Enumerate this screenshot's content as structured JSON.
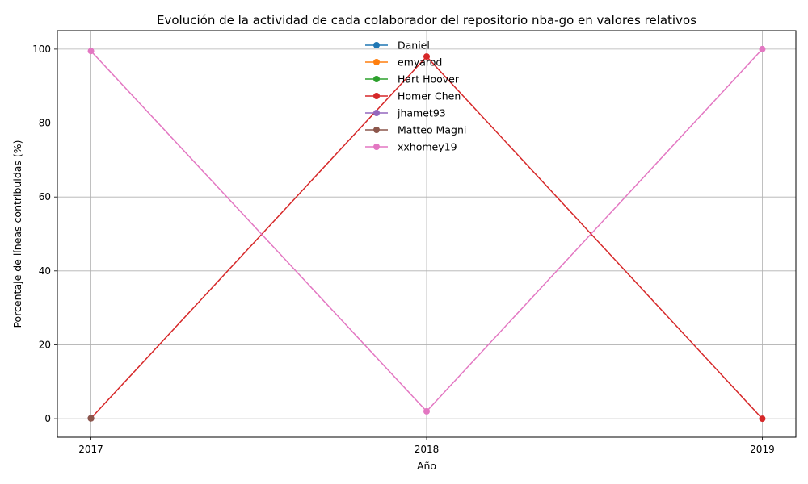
{
  "chart_data": {
    "type": "line",
    "title": "Evolución de la actividad de cada colaborador del repositorio nba-go en valores relativos",
    "xlabel": "Año",
    "ylabel": "Porcentaje de líneas contribuidas (%)",
    "x": [
      2017,
      2018,
      2019
    ],
    "x_tick_labels": [
      "2017",
      "2018",
      "2019"
    ],
    "xlim": [
      2016.9,
      2019.1
    ],
    "ylim": [
      -5,
      105
    ],
    "y_ticks": [
      0,
      20,
      40,
      60,
      80,
      100
    ],
    "y_tick_labels": [
      "0",
      "20",
      "40",
      "60",
      "80",
      "100"
    ],
    "grid": true,
    "legend_position": "upper-center",
    "series": [
      {
        "name": "Daniel",
        "color": "#1f77b4",
        "values": [
          0.1,
          null,
          null
        ]
      },
      {
        "name": "emyarod",
        "color": "#ff7f0e",
        "values": [
          0.1,
          null,
          null
        ]
      },
      {
        "name": "Hart Hoover",
        "color": "#2ca02c",
        "values": [
          0.1,
          null,
          null
        ]
      },
      {
        "name": "Homer Chen",
        "color": "#d62728",
        "values": [
          0.1,
          98,
          0
        ]
      },
      {
        "name": "jhamet93",
        "color": "#9467bd",
        "values": [
          0.1,
          null,
          null
        ]
      },
      {
        "name": "Matteo Magni",
        "color": "#8c564b",
        "values": [
          0.1,
          null,
          null
        ]
      },
      {
        "name": "xxhomey19",
        "color": "#e377c2",
        "values": [
          99.5,
          2,
          100
        ]
      }
    ]
  }
}
